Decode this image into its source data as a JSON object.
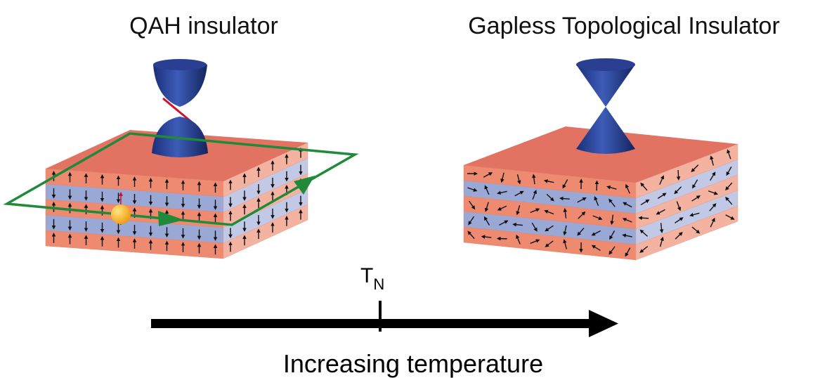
{
  "left_panel": {
    "title": "QAH insulator"
  },
  "right_panel": {
    "title": "Gapless Topological Insulator"
  },
  "axis": {
    "marker": {
      "symbol": "T",
      "subscript": "N"
    },
    "label": "Increasing temperature"
  }
}
